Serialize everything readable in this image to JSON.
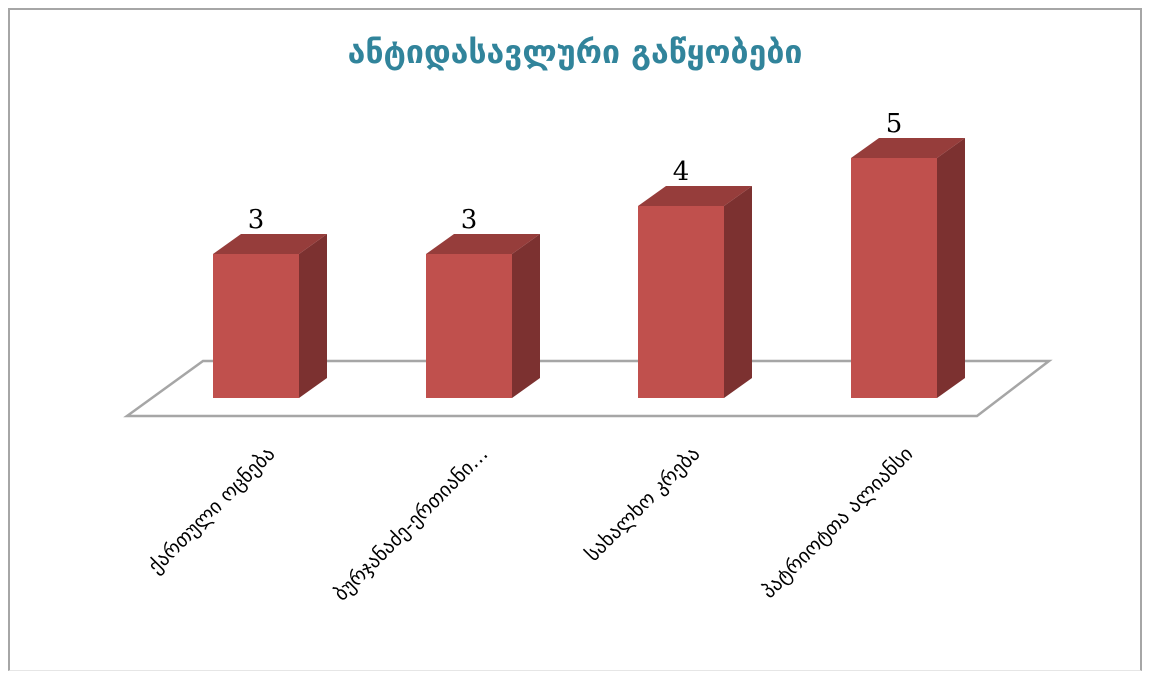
{
  "chart_data": {
    "type": "bar",
    "title": "ანტიდასავლური გაწყობები",
    "categories": [
      "ქართული ოცნება",
      "ბურჯანაძე-ერთიანი…",
      "სახალხო კრება",
      "პატრიოტთა ალიანსი"
    ],
    "values": [
      3,
      3,
      4,
      5
    ],
    "ylim": [
      0,
      6
    ],
    "xlabel": "",
    "ylabel": "",
    "grid": false,
    "legend": "none",
    "colors": {
      "bar_front": "#c0504d",
      "bar_side": "#7c3130",
      "bar_top": "#963d3b",
      "title": "#31849b",
      "floor": "#a6a6a6"
    }
  }
}
